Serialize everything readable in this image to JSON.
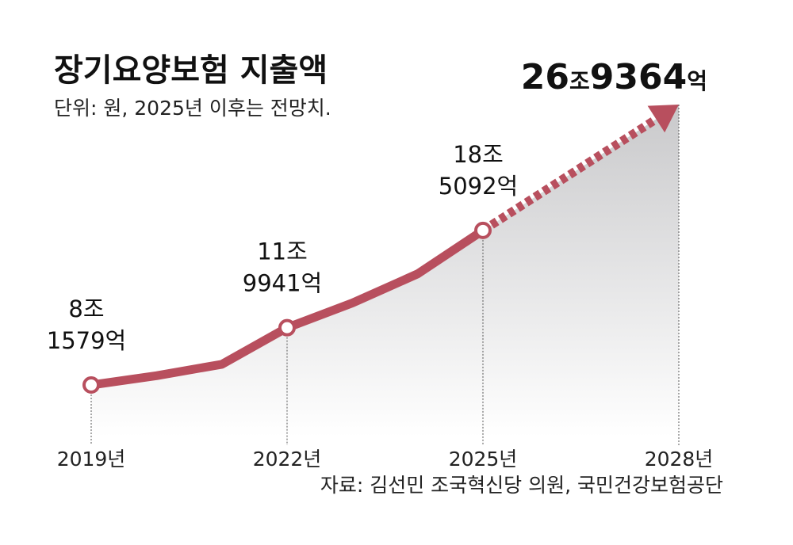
{
  "chart_data": {
    "type": "line",
    "title": "장기요양보험 지출액",
    "subtitle": "단위: 원, 2025년 이후는 전망치.",
    "source": "자료: 김선민 조국혁신당 의원, 국민건강보험공단",
    "x": [
      2019,
      2020,
      2021,
      2022,
      2023,
      2024,
      2025,
      2028
    ],
    "values_eok": [
      81579,
      87800,
      95400,
      119941,
      136500,
      156000,
      185092,
      269364
    ],
    "projection_from_index": 6,
    "xticks": [
      2019,
      2022,
      2025,
      2028
    ],
    "xtick_labels": [
      "2019년",
      "2022년",
      "2025년",
      "2028년"
    ],
    "markers": [
      {
        "x": 2019,
        "value_eok": 81579,
        "label_line1": "8조",
        "label_line2": "1579억"
      },
      {
        "x": 2022,
        "value_eok": 119941,
        "label_line1": "11조",
        "label_line2": "9941억"
      },
      {
        "x": 2025,
        "value_eok": 185092,
        "label_line1": "18조",
        "label_line2": "5092억"
      }
    ],
    "highlight": {
      "x": 2028,
      "value_eok": 269364,
      "parts": [
        "26",
        "조",
        "9364",
        "억"
      ]
    },
    "colors": {
      "line": "#b84f5e",
      "area_top": "#c9c9cb",
      "area_bottom": "#ffffff",
      "guide": "#555555"
    }
  }
}
